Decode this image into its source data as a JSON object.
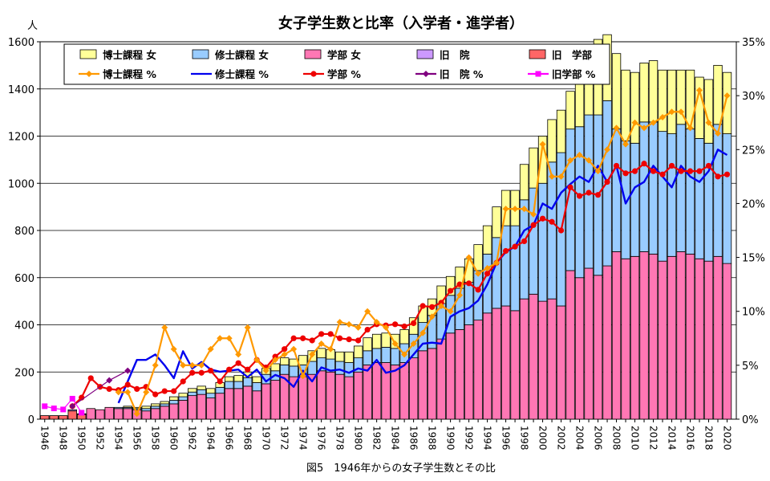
{
  "chart_data": {
    "type": "bar",
    "title": "女子学生数と比率（入学者・進学者）",
    "caption": "図5　1946年からの女子学生数とその比",
    "y_left_unit": "人",
    "ylim_left": [
      0,
      1600
    ],
    "yticks_left": [
      "0",
      "200",
      "400",
      "600",
      "800",
      "1000",
      "1200",
      "1400",
      "1600"
    ],
    "ylim_right": [
      0,
      35
    ],
    "yticks_right": [
      "0%",
      "5%",
      "10%",
      "15%",
      "20%",
      "25%",
      "30%",
      "35%"
    ],
    "x_tick_labels": [
      "1946",
      "1948",
      "1950",
      "1952",
      "1954",
      "1956",
      "1958",
      "1960",
      "1962",
      "1964",
      "1966",
      "1968",
      "1970",
      "1972",
      "1974",
      "1976",
      "1978",
      "1980",
      "1982",
      "1984",
      "1986",
      "1988",
      "1990",
      "1992",
      "1994",
      "1996",
      "1998",
      "2000",
      "2002",
      "2004",
      "2006",
      "2008",
      "2010",
      "2012",
      "2014",
      "2016",
      "2018",
      "2020"
    ],
    "grid": true,
    "legend_position": "top",
    "colors": {
      "doctor": "#ffff99",
      "master": "#99ccff",
      "undergrad": "#ff77b4",
      "old_in": "#cc99ff",
      "old_ug": "#ff6666",
      "doctor_pct": "#ff9900",
      "master_pct": "#0000ee",
      "undergrad_pct": "#ee0000",
      "old_in_pct": "#800080",
      "old_ug_pct": "#ff00ff"
    },
    "legend": [
      {
        "key": "doctor",
        "label": "博士課程 女",
        "kind": "bar"
      },
      {
        "key": "master",
        "label": "修士課程 女",
        "kind": "bar"
      },
      {
        "key": "undergrad",
        "label": "学部 女",
        "kind": "bar"
      },
      {
        "key": "old_in",
        "label": "旧　院",
        "kind": "bar"
      },
      {
        "key": "old_ug",
        "label": "旧　学部",
        "kind": "bar"
      },
      {
        "key": "doctor_pct",
        "label": "博士課程 %",
        "kind": "line",
        "marker": "diamond"
      },
      {
        "key": "master_pct",
        "label": "修士課程 %",
        "kind": "line",
        "marker": "none"
      },
      {
        "key": "undergrad_pct",
        "label": "学部 %",
        "kind": "line",
        "marker": "circle"
      },
      {
        "key": "old_in_pct",
        "label": "旧　院 %",
        "kind": "line",
        "marker": "diamond"
      },
      {
        "key": "old_ug_pct",
        "label": "旧学部 %",
        "kind": "line",
        "marker": "square"
      }
    ],
    "bar_years": [
      1946,
      1947,
      1948,
      1949,
      1950,
      1951,
      1952,
      1953,
      1954,
      1955,
      1956,
      1957,
      1958,
      1959,
      1960,
      1961,
      1962,
      1963,
      1964,
      1965,
      1966,
      1967,
      1968,
      1969,
      1970,
      1971,
      1972,
      1973,
      1974,
      1975,
      1976,
      1977,
      1978,
      1979,
      1980,
      1981,
      1982,
      1983,
      1984,
      1985,
      1986,
      1987,
      1988,
      1989,
      1990,
      1991,
      1992,
      1993,
      1994,
      1995,
      1996,
      1997,
      1998,
      1999,
      2000,
      2001,
      2002,
      2003,
      2004,
      2005,
      2006,
      2007,
      2008,
      2009,
      2010,
      2011,
      2012,
      2013,
      2014,
      2015,
      2016,
      2017,
      2018,
      2019,
      2020
    ],
    "bar_series": [
      {
        "key": "old_ug",
        "values": [
          15,
          15,
          15,
          35,
          20,
          0,
          0,
          0,
          0,
          0,
          0,
          0,
          0,
          0,
          0,
          0,
          0,
          0,
          0,
          0,
          0,
          0,
          0,
          0,
          0,
          0,
          0,
          0,
          0,
          0,
          0,
          0,
          0,
          0,
          0,
          0,
          0,
          0,
          0,
          0,
          0,
          0,
          0,
          0,
          0,
          0,
          0,
          0,
          0,
          0,
          0,
          0,
          0,
          0,
          0,
          0,
          0,
          0,
          0,
          0,
          0,
          0,
          0,
          0,
          0,
          0,
          0,
          0,
          0,
          0,
          0,
          0,
          0,
          0,
          0
        ]
      },
      {
        "key": "old_in",
        "values": [
          0,
          0,
          0,
          5,
          3,
          0,
          0,
          0,
          0,
          0,
          0,
          0,
          0,
          0,
          0,
          0,
          0,
          0,
          0,
          0,
          0,
          0,
          0,
          0,
          0,
          0,
          0,
          0,
          0,
          0,
          0,
          0,
          0,
          0,
          0,
          0,
          0,
          0,
          0,
          0,
          0,
          0,
          0,
          0,
          0,
          0,
          0,
          0,
          0,
          0,
          0,
          0,
          0,
          0,
          0,
          0,
          0,
          0,
          0,
          0,
          0,
          0,
          0,
          0,
          0,
          0,
          0,
          0,
          0,
          0,
          0,
          0,
          0,
          0,
          0
        ]
      },
      {
        "key": "undergrad",
        "values": [
          0,
          0,
          0,
          0,
          0,
          45,
          40,
          50,
          45,
          45,
          40,
          35,
          45,
          55,
          65,
          80,
          100,
          105,
          90,
          110,
          130,
          130,
          140,
          120,
          150,
          165,
          190,
          180,
          180,
          190,
          205,
          200,
          190,
          180,
          200,
          230,
          240,
          240,
          230,
          240,
          260,
          290,
          300,
          340,
          365,
          380,
          400,
          420,
          450,
          470,
          480,
          460,
          510,
          530,
          500,
          510,
          480,
          630,
          600,
          640,
          610,
          650,
          710,
          680,
          690,
          710,
          700,
          670,
          690,
          710,
          700,
          680,
          670,
          690,
          660
        ]
      },
      {
        "key": "master",
        "values": [
          0,
          0,
          0,
          0,
          0,
          0,
          0,
          0,
          5,
          5,
          5,
          10,
          10,
          10,
          15,
          15,
          15,
          20,
          20,
          25,
          30,
          30,
          35,
          35,
          40,
          40,
          40,
          45,
          50,
          55,
          55,
          55,
          55,
          60,
          60,
          60,
          60,
          65,
          70,
          80,
          100,
          120,
          140,
          150,
          160,
          175,
          180,
          210,
          250,
          300,
          340,
          360,
          420,
          450,
          500,
          580,
          650,
          600,
          640,
          650,
          680,
          700,
          520,
          500,
          480,
          550,
          560,
          550,
          520,
          540,
          530,
          510,
          500,
          560,
          550
        ]
      },
      {
        "key": "doctor",
        "values": [
          0,
          0,
          0,
          0,
          0,
          0,
          0,
          0,
          0,
          5,
          5,
          10,
          10,
          10,
          15,
          15,
          15,
          15,
          20,
          20,
          20,
          25,
          25,
          25,
          25,
          30,
          30,
          30,
          40,
          45,
          40,
          40,
          40,
          45,
          50,
          55,
          60,
          60,
          60,
          60,
          70,
          70,
          70,
          75,
          80,
          90,
          100,
          110,
          120,
          130,
          150,
          150,
          150,
          170,
          200,
          180,
          180,
          160,
          250,
          280,
          320,
          280,
          320,
          300,
          300,
          250,
          260,
          260,
          270,
          230,
          250,
          260,
          270,
          250,
          260
        ]
      }
    ],
    "line_series": [
      {
        "key": "old_ug_pct",
        "years": [
          1946,
          1947,
          1948,
          1949,
          1950
        ],
        "values": [
          1.2,
          1.0,
          0.9,
          1.9,
          0.6
        ]
      },
      {
        "key": "old_in_pct",
        "years": [
          1949,
          1953,
          1955
        ],
        "values": [
          1.2,
          3.6,
          4.5
        ]
      },
      {
        "key": "undergrad_pct",
        "years": [
          1949,
          1950,
          1951,
          1952,
          1953,
          1954,
          1955,
          1956,
          1957,
          1958,
          1959,
          1960,
          1961,
          1962,
          1963,
          1964,
          1965,
          1966,
          1967,
          1968,
          1969,
          1970,
          1971,
          1972,
          1973,
          1974,
          1975,
          1976,
          1977,
          1978,
          1979,
          1980,
          1981,
          1982,
          1983,
          1984,
          1985,
          1986,
          1987,
          1988,
          1989,
          1990,
          1991,
          1992,
          1993,
          1994,
          1995,
          1996,
          1997,
          1998,
          1999,
          2000,
          2001,
          2002,
          2003,
          2004,
          2005,
          2006,
          2007,
          2008,
          2009,
          2010,
          2011,
          2012,
          2013,
          2014,
          2015,
          2016,
          2017,
          2018,
          2019,
          2020
        ],
        "values": [
          1.2,
          2.0,
          3.8,
          3.0,
          2.8,
          2.7,
          3.2,
          2.8,
          3.0,
          2.3,
          2.6,
          2.6,
          3.5,
          4.3,
          4.3,
          4.5,
          3.5,
          4.6,
          5.2,
          4.6,
          5.5,
          4.8,
          5.8,
          6.5,
          7.5,
          7.5,
          7.3,
          7.9,
          7.9,
          7.5,
          7.4,
          7.3,
          8.3,
          8.8,
          8.7,
          8.8,
          8.6,
          8.9,
          10.5,
          10.4,
          10.8,
          11.9,
          12.5,
          12.6,
          12.0,
          13.5,
          14.5,
          15.6,
          16.0,
          16.5,
          18.0,
          18.6,
          18.3,
          17.5,
          21.5,
          20.7,
          21.0,
          20.8,
          22.0,
          23.5,
          22.8,
          23.0,
          23.7,
          23.0,
          22.7,
          23.5,
          23.0,
          23.0,
          23.0,
          23.5,
          22.5,
          22.7
        ]
      },
      {
        "key": "master_pct",
        "years": [
          1954,
          1955,
          1956,
          1957,
          1958,
          1959,
          1960,
          1961,
          1962,
          1963,
          1964,
          1965,
          1966,
          1967,
          1968,
          1969,
          1970,
          1971,
          1972,
          1973,
          1974,
          1975,
          1976,
          1977,
          1978,
          1979,
          1980,
          1981,
          1982,
          1983,
          1984,
          1985,
          1986,
          1987,
          1988,
          1989,
          1990,
          1991,
          1992,
          1993,
          1994,
          1995,
          1996,
          1997,
          1998,
          1999,
          2000,
          2001,
          2002,
          2003,
          2004,
          2005,
          2006,
          2007,
          2008,
          2009,
          2010,
          2011,
          2012,
          2013,
          2014,
          2015,
          2016,
          2017,
          2018,
          2019,
          2020
        ],
        "values": [
          1.5,
          3.5,
          5.5,
          5.5,
          6.0,
          5.0,
          3.8,
          6.3,
          4.7,
          5.3,
          4.6,
          4.4,
          4.5,
          4.6,
          3.9,
          4.6,
          3.5,
          4.1,
          3.8,
          3.0,
          4.5,
          3.5,
          4.8,
          4.5,
          4.6,
          4.3,
          4.7,
          4.5,
          5.5,
          4.3,
          4.5,
          5.0,
          6.0,
          7.0,
          7.1,
          7.0,
          9.5,
          10.0,
          10.3,
          11.0,
          12.5,
          14.5,
          15.5,
          16.0,
          17.5,
          18.0,
          20.0,
          19.5,
          21.0,
          21.8,
          22.5,
          22.0,
          23.5,
          22.0,
          23.5,
          20.0,
          21.5,
          22.0,
          23.5,
          22.5,
          21.5,
          23.5,
          22.5,
          22.0,
          23.0,
          25.0,
          24.5
        ]
      },
      {
        "key": "doctor_pct",
        "years": [
          1954,
          1955,
          1956,
          1957,
          1958,
          1959,
          1960,
          1961,
          1962,
          1963,
          1964,
          1965,
          1966,
          1967,
          1968,
          1969,
          1970,
          1971,
          1972,
          1973,
          1974,
          1975,
          1976,
          1977,
          1978,
          1979,
          1980,
          1981,
          1982,
          1983,
          1984,
          1985,
          1986,
          1987,
          1988,
          1989,
          1990,
          1991,
          1992,
          1993,
          1994,
          1995,
          1996,
          1997,
          1998,
          1999,
          2000,
          2001,
          2002,
          2003,
          2004,
          2005,
          2006,
          2007,
          2008,
          2009,
          2010,
          2011,
          2012,
          2013,
          2014,
          2015,
          2016,
          2017,
          2018,
          2019,
          2020
        ],
        "values": [
          2.5,
          2.5,
          0.5,
          2.5,
          5.0,
          8.5,
          6.5,
          5.0,
          5.0,
          5.0,
          6.5,
          7.5,
          7.5,
          6.0,
          8.5,
          5.5,
          4.5,
          5.5,
          6.0,
          6.5,
          4.0,
          6.0,
          7.0,
          6.5,
          9.0,
          8.8,
          8.5,
          10.0,
          9.0,
          8.5,
          7.0,
          6.0,
          7.0,
          8.0,
          9.5,
          10.5,
          10.0,
          11.5,
          15.0,
          13.5,
          14.0,
          14.5,
          19.5,
          19.5,
          19.5,
          19.0,
          25.5,
          22.5,
          22.5,
          24.0,
          24.5,
          24.0,
          23.0,
          25.0,
          27.0,
          25.5,
          27.5,
          27.0,
          27.5,
          28.0,
          28.5,
          28.5,
          27.0,
          30.5,
          27.5,
          26.5,
          30.0
        ]
      }
    ]
  }
}
